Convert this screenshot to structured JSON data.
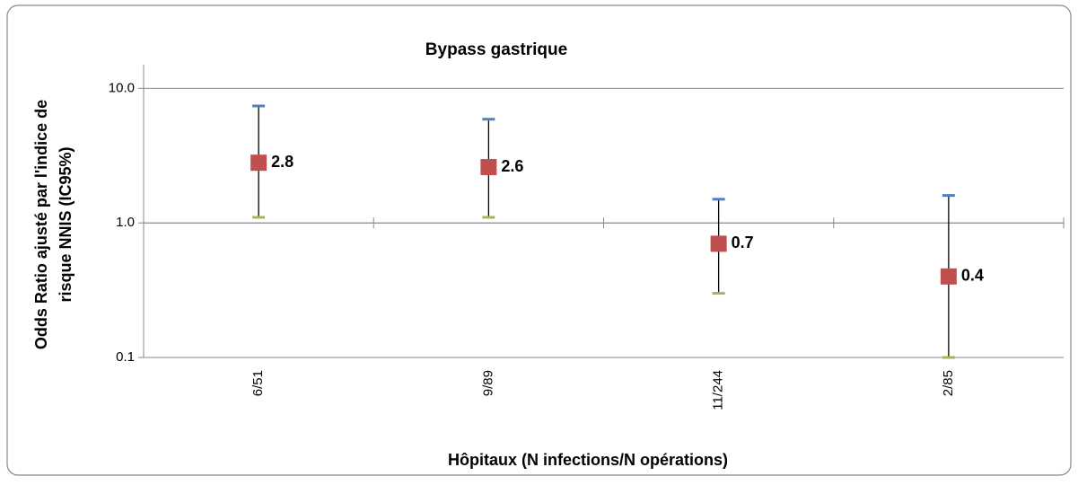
{
  "chart_data": {
    "type": "errorbar",
    "title": "Bypass gastrique",
    "ylabel": [
      "Odds Ratio ajusté par l'indice de",
      "risque NNIS (IC95%)"
    ],
    "xlabel": "Hôpitaux (N infections/N opérations)",
    "categories": [
      "6/51",
      "9/89",
      "11/244",
      "2/85"
    ],
    "values": [
      2.8,
      2.6,
      0.7,
      0.4
    ],
    "upper": [
      7.4,
      5.9,
      1.5,
      1.6
    ],
    "lower": [
      1.1,
      1.1,
      0.3,
      0.1
    ],
    "color": "#c0504d",
    "upper_color": "#4f81bd",
    "lower_color": "#9bbb59",
    "log_scale": true,
    "grid": true,
    "x_axis_crosses": 1,
    "ylim": [
      0.1,
      15
    ],
    "yticks": [
      0.1,
      {
        "value": 1,
        "label": "1.0"
      },
      {
        "value": 10,
        "label": "10.0"
      }
    ]
  }
}
